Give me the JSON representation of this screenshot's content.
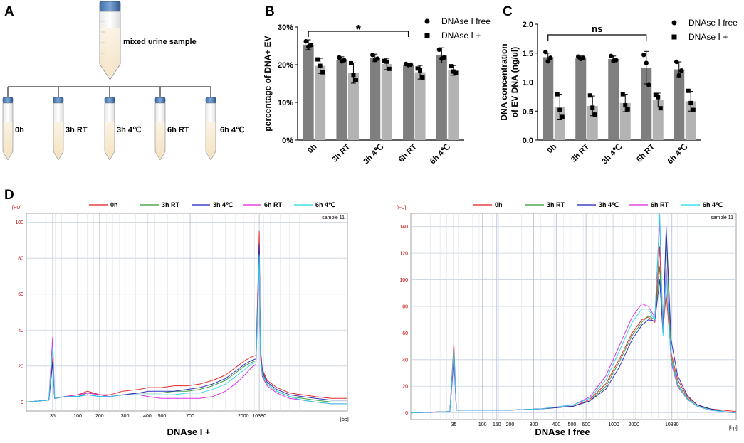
{
  "panels": {
    "a": {
      "label": "A",
      "source_label": "mixed urine sample",
      "tubes": [
        "0h",
        "3h RT",
        "3h 4℃",
        "6h RT",
        "6h 4℃"
      ]
    },
    "b": {
      "label": "B"
    },
    "c": {
      "label": "C"
    },
    "d": {
      "label": "D",
      "caption_left": "DNAse I +",
      "caption_right": "DNAse I  free"
    }
  },
  "colors": {
    "free": "#7f7f7f",
    "plus": "#b3b3b3",
    "trace_0h": "#e41a1c",
    "trace_3hrt": "#2e9a2e",
    "trace_3h4": "#1f1fbf",
    "trace_6hrt": "#e020e0",
    "trace_6h4": "#20d8e8"
  },
  "chart_data": [
    {
      "id": "b",
      "type": "bar",
      "ylabel": "percentage of DNA+ EV",
      "ylim": [
        0,
        30
      ],
      "yticks": [
        0,
        10,
        20,
        30
      ],
      "ytick_labels": [
        "0%",
        "10%",
        "20%",
        "30%"
      ],
      "categories": [
        "0h",
        "3h RT",
        "3h 4℃",
        "6h RT",
        "6h 4℃"
      ],
      "series": [
        {
          "name": "DNAse Ⅰ free",
          "marker": "circle",
          "values": [
            25.3,
            21.3,
            21.8,
            20.0,
            22.5
          ],
          "errors": [
            1.3,
            0.8,
            1.0,
            0.3,
            2.0
          ],
          "points": [
            [
              26.2,
              24.8,
              25.2
            ],
            [
              21.9,
              20.9,
              21.2
            ],
            [
              22.6,
              21.3,
              21.6
            ],
            [
              20.2,
              19.9,
              20.0
            ],
            [
              24.0,
              21.6,
              21.9
            ]
          ]
        },
        {
          "name": "DNAse Ⅰ +",
          "marker": "square",
          "values": [
            19.7,
            17.8,
            20.2,
            18.0,
            18.5
          ],
          "errors": [
            2.0,
            2.7,
            1.5,
            1.8,
            1.3
          ],
          "points": [
            [
              21.4,
              19.7,
              18.0
            ],
            [
              20.4,
              17.3,
              15.9
            ],
            [
              21.0,
              20.8,
              18.9
            ],
            [
              19.0,
              18.5,
              16.6
            ],
            [
              19.6,
              18.2,
              17.8
            ]
          ]
        }
      ],
      "significance": {
        "from": 0,
        "to": 3,
        "label": "*"
      }
    },
    {
      "id": "c",
      "type": "bar",
      "ylabel": "DNA concentration",
      "ylabel2": "of EV DNA (ng/ul)",
      "ylim": [
        0,
        2.0
      ],
      "yticks": [
        0,
        0.5,
        1.0,
        1.5,
        2.0
      ],
      "ytick_labels": [
        "0.0",
        "0.5",
        "1.0",
        "1.5",
        "2.0"
      ],
      "categories": [
        "0h",
        "3h RT",
        "3h 4℃",
        "6h RT",
        "6h 4℃"
      ],
      "series": [
        {
          "name": "DNAse Ⅰ free",
          "marker": "circle",
          "values": [
            1.43,
            1.42,
            1.4,
            1.25,
            1.22
          ],
          "errors": [
            0.07,
            0.03,
            0.05,
            0.28,
            0.13
          ],
          "points": [
            [
              1.52,
              1.36,
              1.42
            ],
            [
              1.44,
              1.4,
              1.42
            ],
            [
              1.45,
              1.37,
              1.38
            ],
            [
              1.47,
              1.33,
              0.95
            ],
            [
              1.35,
              1.12,
              1.2
            ]
          ]
        },
        {
          "name": "DNAse Ⅰ +",
          "marker": "square",
          "values": [
            0.57,
            0.59,
            0.64,
            0.69,
            0.67
          ],
          "errors": [
            0.22,
            0.17,
            0.15,
            0.12,
            0.17
          ],
          "points": [
            [
              0.79,
              0.52,
              0.4
            ],
            [
              0.77,
              0.56,
              0.44
            ],
            [
              0.79,
              0.6,
              0.53
            ],
            [
              0.78,
              0.74,
              0.55
            ],
            [
              0.85,
              0.64,
              0.52
            ]
          ]
        }
      ],
      "significance": {
        "from": 0,
        "to": 3,
        "label": "ns"
      }
    },
    {
      "id": "d_left",
      "type": "line",
      "title": "DNAse I +",
      "ylabel": "[FU]",
      "xlabel": "[bp]",
      "annotation": "sample 11",
      "ylim": [
        -5,
        105
      ],
      "yticks": [
        0,
        20,
        40,
        60,
        80,
        100
      ],
      "xtick_labels": [
        "35",
        "100",
        "200",
        "300",
        "400",
        "500",
        "700",
        "2000",
        "10380"
      ],
      "xtick_positions": [
        0.0818,
        0.1597,
        0.2279,
        0.3074,
        0.3769,
        0.4223,
        0.5101,
        0.6757,
        0.7253
      ],
      "legend": [
        "0h",
        "3h RT",
        "3h 4℃",
        "6h RT",
        "6h 4℃"
      ],
      "series": [
        {
          "name": "0h",
          "x": [
            0,
            0.07,
            0.0818,
            0.088,
            0.12,
            0.16,
            0.19,
            0.23,
            0.26,
            0.3,
            0.35,
            0.38,
            0.42,
            0.46,
            0.5,
            0.54,
            0.58,
            0.62,
            0.65,
            0.68,
            0.7,
            0.715,
            0.722,
            0.7253,
            0.729,
            0.735,
            0.75,
            0.78,
            0.82,
            0.86,
            0.9,
            0.95,
            1.0
          ],
          "y": [
            0,
            1,
            24,
            2,
            3,
            4,
            6,
            4,
            4,
            6,
            7,
            8,
            8,
            9,
            9,
            10,
            12,
            15,
            19,
            23,
            25,
            26,
            70,
            95,
            30,
            18,
            12,
            8,
            5,
            4,
            3,
            2,
            2
          ]
        },
        {
          "name": "3h RT",
          "x": [
            0,
            0.07,
            0.0818,
            0.088,
            0.12,
            0.16,
            0.19,
            0.23,
            0.26,
            0.3,
            0.35,
            0.38,
            0.42,
            0.46,
            0.5,
            0.54,
            0.58,
            0.62,
            0.65,
            0.68,
            0.7,
            0.715,
            0.722,
            0.7253,
            0.729,
            0.735,
            0.75,
            0.78,
            0.82,
            0.86,
            0.9,
            0.95,
            1.0
          ],
          "y": [
            0,
            1,
            22,
            2,
            3,
            3,
            5,
            4,
            3,
            4,
            5,
            5,
            5,
            6,
            6,
            7,
            9,
            12,
            16,
            20,
            22,
            23,
            60,
            85,
            27,
            16,
            10,
            6,
            3,
            2,
            1,
            0,
            0
          ]
        },
        {
          "name": "3h 4℃",
          "x": [
            0,
            0.07,
            0.0818,
            0.088,
            0.12,
            0.16,
            0.19,
            0.23,
            0.26,
            0.3,
            0.35,
            0.38,
            0.42,
            0.46,
            0.5,
            0.54,
            0.58,
            0.62,
            0.65,
            0.68,
            0.7,
            0.715,
            0.722,
            0.7253,
            0.729,
            0.735,
            0.75,
            0.78,
            0.82,
            0.86,
            0.9,
            0.95,
            1.0
          ],
          "y": [
            0,
            1,
            22,
            2,
            3,
            3,
            4,
            3,
            3,
            4,
            5,
            6,
            6,
            6,
            7,
            8,
            10,
            13,
            17,
            21,
            23,
            24,
            62,
            88,
            28,
            17,
            11,
            7,
            4,
            3,
            2,
            1,
            1
          ]
        },
        {
          "name": "6h RT",
          "x": [
            0,
            0.07,
            0.0818,
            0.088,
            0.12,
            0.16,
            0.19,
            0.23,
            0.26,
            0.3,
            0.35,
            0.38,
            0.42,
            0.46,
            0.5,
            0.54,
            0.58,
            0.62,
            0.65,
            0.68,
            0.7,
            0.715,
            0.722,
            0.7253,
            0.729,
            0.735,
            0.75,
            0.78,
            0.82,
            0.86,
            0.9,
            0.95,
            1.0
          ],
          "y": [
            0,
            1,
            36,
            2,
            3,
            4,
            5,
            4,
            3,
            4,
            4,
            3,
            2,
            2,
            2,
            2,
            3,
            6,
            10,
            15,
            19,
            21,
            58,
            80,
            25,
            14,
            9,
            5,
            2,
            1,
            0,
            -1,
            -1
          ]
        },
        {
          "name": "6h 4℃",
          "x": [
            0,
            0.07,
            0.0818,
            0.088,
            0.12,
            0.16,
            0.19,
            0.23,
            0.26,
            0.3,
            0.35,
            0.38,
            0.42,
            0.46,
            0.5,
            0.54,
            0.58,
            0.62,
            0.65,
            0.68,
            0.7,
            0.715,
            0.722,
            0.7253,
            0.729,
            0.735,
            0.75,
            0.78,
            0.82,
            0.86,
            0.9,
            0.95,
            1.0
          ],
          "y": [
            0,
            1,
            30,
            2,
            3,
            3,
            4,
            3,
            3,
            4,
            4,
            4,
            4,
            4,
            5,
            5,
            7,
            10,
            14,
            18,
            21,
            22,
            60,
            82,
            26,
            15,
            10,
            6,
            3,
            1,
            0,
            -1,
            -1
          ]
        }
      ]
    },
    {
      "id": "d_right",
      "type": "line",
      "title": "DNAse I  free",
      "ylabel": "[FU]",
      "xlabel": "[bp]",
      "annotation": "sample 11",
      "ylim": [
        -5,
        150
      ],
      "yticks": [
        0,
        20,
        40,
        60,
        80,
        100,
        120,
        140
      ],
      "xtick_labels": [
        "35",
        "100",
        "150",
        "200",
        "300",
        "400",
        "500",
        "600",
        "1000",
        "2000",
        "10380"
      ],
      "xtick_positions": [
        0.1324,
        0.2203,
        0.2643,
        0.3052,
        0.3773,
        0.4471,
        0.4954,
        0.5387,
        0.6237,
        0.6855,
        0.8025
      ],
      "legend": [
        "0h",
        "3h RT",
        "3h 4℃",
        "6h RT",
        "6h 4℃"
      ],
      "series": [
        {
          "name": "0h",
          "x": [
            0,
            0.12,
            0.1324,
            0.14,
            0.2,
            0.3,
            0.4,
            0.5,
            0.55,
            0.6,
            0.64,
            0.68,
            0.71,
            0.73,
            0.75,
            0.765,
            0.775,
            0.785,
            0.8,
            0.82,
            0.85,
            0.88,
            0.92,
            0.96,
            1.0
          ],
          "y": [
            0,
            1,
            52,
            2,
            2,
            2,
            3,
            5,
            10,
            22,
            40,
            60,
            70,
            72,
            68,
            125,
            62,
            90,
            45,
            25,
            12,
            6,
            3,
            2,
            1
          ]
        },
        {
          "name": "3h RT",
          "x": [
            0,
            0.12,
            0.1324,
            0.14,
            0.2,
            0.3,
            0.4,
            0.5,
            0.55,
            0.6,
            0.64,
            0.68,
            0.71,
            0.73,
            0.75,
            0.765,
            0.775,
            0.785,
            0.8,
            0.82,
            0.85,
            0.88,
            0.92,
            0.96,
            1.0
          ],
          "y": [
            0,
            1,
            46,
            2,
            2,
            2,
            3,
            5,
            9,
            20,
            38,
            58,
            68,
            73,
            70,
            110,
            65,
            135,
            42,
            22,
            11,
            5,
            3,
            1,
            0
          ]
        },
        {
          "name": "3h 4℃",
          "x": [
            0,
            0.12,
            0.1324,
            0.14,
            0.2,
            0.3,
            0.4,
            0.5,
            0.55,
            0.6,
            0.64,
            0.68,
            0.71,
            0.73,
            0.75,
            0.765,
            0.775,
            0.785,
            0.8,
            0.82,
            0.85,
            0.88,
            0.92,
            0.96,
            1.0
          ],
          "y": [
            0,
            1,
            40,
            2,
            2,
            2,
            3,
            5,
            9,
            18,
            34,
            55,
            66,
            70,
            69,
            100,
            60,
            140,
            55,
            28,
            13,
            6,
            3,
            1,
            0
          ]
        },
        {
          "name": "6h RT",
          "x": [
            0,
            0.12,
            0.1324,
            0.14,
            0.2,
            0.3,
            0.4,
            0.5,
            0.55,
            0.6,
            0.64,
            0.68,
            0.71,
            0.73,
            0.75,
            0.765,
            0.775,
            0.785,
            0.8,
            0.82,
            0.85,
            0.88,
            0.92,
            0.96,
            1.0
          ],
          "y": [
            0,
            1,
            44,
            2,
            2,
            2,
            3,
            6,
            12,
            28,
            50,
            72,
            82,
            80,
            72,
            145,
            60,
            110,
            38,
            20,
            10,
            5,
            2,
            1,
            0
          ]
        },
        {
          "name": "6h 4℃",
          "x": [
            0,
            0.12,
            0.1324,
            0.14,
            0.2,
            0.3,
            0.4,
            0.5,
            0.55,
            0.6,
            0.64,
            0.68,
            0.71,
            0.73,
            0.75,
            0.765,
            0.775,
            0.785,
            0.8,
            0.82,
            0.85,
            0.88,
            0.92,
            0.96,
            1.0
          ],
          "y": [
            0,
            1,
            48,
            2,
            2,
            2,
            3,
            6,
            11,
            25,
            46,
            68,
            78,
            78,
            70,
            150,
            58,
            105,
            40,
            21,
            10,
            5,
            2,
            1,
            0
          ]
        }
      ]
    }
  ]
}
